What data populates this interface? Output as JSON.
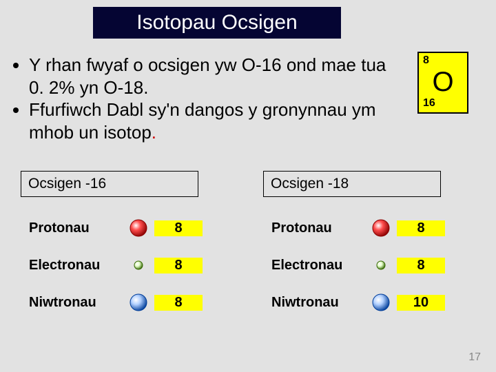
{
  "slide": {
    "background_color": "#e2e2e2",
    "title": {
      "text": "Isotopau Ocsigen",
      "bg_color": "#050533",
      "text_color": "#ffffff",
      "fontsize": 30
    },
    "bullets": [
      "Y rhan fwyaf o ocsigen yw O-16  ond mae tua 0. 2% yn O-18.",
      "Ffurfiwch Dabl sy'n dangos y gronynnau ym mhob un isotop"
    ],
    "bullet_fontsize": 26,
    "element_box": {
      "atomic_number": "8",
      "symbol": "O",
      "mass_number": "16",
      "bg_color": "#ffff00",
      "border_color": "#000000"
    },
    "tables": [
      {
        "header": "Ocsigen -16",
        "rows": [
          {
            "label": "Protonau",
            "icon": "proton",
            "value": "8"
          },
          {
            "label": "Electronau",
            "icon": "electron",
            "value": "8"
          },
          {
            "label": "Niwtronau",
            "icon": "neutron",
            "value": "8"
          }
        ]
      },
      {
        "header": "Ocsigen -18",
        "rows": [
          {
            "label": "Protonau",
            "icon": "proton",
            "value": "8"
          },
          {
            "label": "Electronau",
            "icon": "electron",
            "value": "8"
          },
          {
            "label": "Niwtronau",
            "icon": "neutron",
            "value": "10"
          }
        ]
      }
    ],
    "value_bg_color": "#ffff00",
    "page_number": "17",
    "particle_styles": {
      "proton": {
        "radius": 12,
        "fill": "#ff4d4d",
        "stroke": "#8a0000",
        "highlight": "#ffffff"
      },
      "electron": {
        "radius": 6,
        "fill": "#e6ffcc",
        "stroke": "#336600",
        "highlight": "#ffffff"
      },
      "neutron": {
        "radius": 12,
        "fill": "#b3d1ff",
        "stroke": "#003d99",
        "highlight": "#ffffff"
      }
    }
  }
}
